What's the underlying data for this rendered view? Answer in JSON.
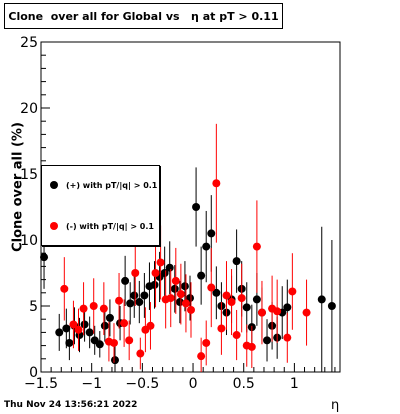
{
  "title": "Clone  over all for Global vs   η at pT > 0.11",
  "timestamp": "Thu Nov 24 13:56:21 2022",
  "chart_data": {
    "type": "scatter",
    "title": "Clone  over all for Global vs   η at pT > 0.11",
    "xlabel": "η",
    "ylabel": "Clone  over all (%)",
    "xlim": [
      -1.5,
      1.45
    ],
    "ylim": [
      0,
      25
    ],
    "xticks": [
      -1.5,
      -1,
      -0.5,
      0,
      0.5,
      1
    ],
    "xtick_labels": [
      "−1.5",
      "−1",
      "−0.5",
      "0",
      "0.5",
      "1"
    ],
    "yticks": [
      0,
      5,
      10,
      15,
      20,
      25
    ],
    "ytick_labels": [
      "0",
      "5",
      "10",
      "15",
      "20",
      "25"
    ],
    "legend_position": "left",
    "series": [
      {
        "name": "(+) with pT/|q| > 0.1",
        "color": "#000000",
        "points": [
          {
            "x": -1.47,
            "y": 8.7,
            "err": 2.4
          },
          {
            "x": -1.32,
            "y": 3.0,
            "err": 1.4
          },
          {
            "x": -1.25,
            "y": 3.3,
            "err": 1.5
          },
          {
            "x": -1.22,
            "y": 2.2,
            "err": 1.3
          },
          {
            "x": -1.17,
            "y": 3.5,
            "err": 1.4
          },
          {
            "x": -1.12,
            "y": 2.8,
            "err": 1.3
          },
          {
            "x": -1.07,
            "y": 3.6,
            "err": 1.3
          },
          {
            "x": -1.02,
            "y": 3.0,
            "err": 1.2
          },
          {
            "x": -0.97,
            "y": 2.4,
            "err": 1.1
          },
          {
            "x": -0.92,
            "y": 2.1,
            "err": 1.0
          },
          {
            "x": -0.87,
            "y": 3.5,
            "err": 1.2
          },
          {
            "x": -0.82,
            "y": 4.1,
            "err": 1.4
          },
          {
            "x": -0.77,
            "y": 0.9,
            "err": 1.2
          },
          {
            "x": -0.72,
            "y": 3.7,
            "err": 1.3
          },
          {
            "x": -0.67,
            "y": 6.9,
            "err": 1.9
          },
          {
            "x": -0.62,
            "y": 5.2,
            "err": 1.6
          },
          {
            "x": -0.58,
            "y": 5.8,
            "err": 1.7
          },
          {
            "x": -0.53,
            "y": 5.3,
            "err": 1.6
          },
          {
            "x": -0.48,
            "y": 5.8,
            "err": 1.7
          },
          {
            "x": -0.43,
            "y": 6.5,
            "err": 1.8
          },
          {
            "x": -0.38,
            "y": 6.6,
            "err": 1.8
          },
          {
            "x": -0.33,
            "y": 7.2,
            "err": 1.9
          },
          {
            "x": -0.28,
            "y": 7.5,
            "err": 2.0
          },
          {
            "x": -0.23,
            "y": 7.9,
            "err": 2.0
          },
          {
            "x": -0.18,
            "y": 6.3,
            "err": 1.8
          },
          {
            "x": -0.13,
            "y": 5.3,
            "err": 1.6
          },
          {
            "x": -0.08,
            "y": 6.5,
            "err": 1.9
          },
          {
            "x": -0.03,
            "y": 5.6,
            "err": 1.7
          },
          {
            "x": 0.03,
            "y": 12.5,
            "err": 3.0
          },
          {
            "x": 0.08,
            "y": 7.3,
            "err": 2.2
          },
          {
            "x": 0.13,
            "y": 9.5,
            "err": 2.7
          },
          {
            "x": 0.18,
            "y": 10.5,
            "err": 2.9
          },
          {
            "x": 0.23,
            "y": 6.0,
            "err": 2.0
          },
          {
            "x": 0.28,
            "y": 5.0,
            "err": 1.8
          },
          {
            "x": 0.33,
            "y": 4.5,
            "err": 1.7
          },
          {
            "x": 0.38,
            "y": 5.5,
            "err": 1.8
          },
          {
            "x": 0.43,
            "y": 8.4,
            "err": 2.4
          },
          {
            "x": 0.48,
            "y": 6.3,
            "err": 2.1
          },
          {
            "x": 0.53,
            "y": 4.9,
            "err": 1.9
          },
          {
            "x": 0.58,
            "y": 3.4,
            "err": 1.7
          },
          {
            "x": 0.63,
            "y": 5.5,
            "err": 2.0
          },
          {
            "x": 0.68,
            "y": 4.5,
            "err": 1.9
          },
          {
            "x": 0.73,
            "y": 2.4,
            "err": 1.6
          },
          {
            "x": 0.78,
            "y": 3.5,
            "err": 1.8
          },
          {
            "x": 0.83,
            "y": 2.6,
            "err": 1.6
          },
          {
            "x": 0.88,
            "y": 4.5,
            "err": 2.0
          },
          {
            "x": 0.93,
            "y": 4.9,
            "err": 2.1
          },
          {
            "x": 1.27,
            "y": 5.5,
            "err": 5.5
          },
          {
            "x": 1.37,
            "y": 5.0,
            "err": 5.0
          }
        ]
      },
      {
        "name": "(-) with pT/|q| > 0.1",
        "color": "#ff0000",
        "points": [
          {
            "x": -1.27,
            "y": 6.3,
            "err": 2.4
          },
          {
            "x": -1.18,
            "y": 3.6,
            "err": 1.8
          },
          {
            "x": -1.13,
            "y": 3.2,
            "err": 1.6
          },
          {
            "x": -1.08,
            "y": 4.8,
            "err": 2.0
          },
          {
            "x": -0.98,
            "y": 5.0,
            "err": 2.1
          },
          {
            "x": -0.88,
            "y": 4.8,
            "err": 2.0
          },
          {
            "x": -0.83,
            "y": 2.3,
            "err": 1.5
          },
          {
            "x": -0.78,
            "y": 2.2,
            "err": 1.5
          },
          {
            "x": -0.73,
            "y": 5.4,
            "err": 2.1
          },
          {
            "x": -0.68,
            "y": 3.7,
            "err": 1.8
          },
          {
            "x": -0.63,
            "y": 2.4,
            "err": 1.5
          },
          {
            "x": -0.57,
            "y": 7.5,
            "err": 2.5
          },
          {
            "x": -0.52,
            "y": 1.4,
            "err": 1.2
          },
          {
            "x": -0.47,
            "y": 3.2,
            "err": 1.7
          },
          {
            "x": -0.42,
            "y": 3.5,
            "err": 1.8
          },
          {
            "x": -0.37,
            "y": 7.5,
            "err": 2.6
          },
          {
            "x": -0.32,
            "y": 8.3,
            "err": 2.8
          },
          {
            "x": -0.27,
            "y": 5.5,
            "err": 2.2
          },
          {
            "x": -0.22,
            "y": 5.6,
            "err": 2.2
          },
          {
            "x": -0.17,
            "y": 6.9,
            "err": 2.5
          },
          {
            "x": -0.12,
            "y": 5.9,
            "err": 2.3
          },
          {
            "x": -0.07,
            "y": 5.2,
            "err": 2.2
          },
          {
            "x": -0.02,
            "y": 4.7,
            "err": 2.1
          },
          {
            "x": 0.08,
            "y": 1.2,
            "err": 1.4
          },
          {
            "x": 0.13,
            "y": 2.2,
            "err": 1.7
          },
          {
            "x": 0.18,
            "y": 6.4,
            "err": 3.0
          },
          {
            "x": 0.23,
            "y": 14.3,
            "err": 4.5
          },
          {
            "x": 0.28,
            "y": 3.3,
            "err": 2.0
          },
          {
            "x": 0.33,
            "y": 5.8,
            "err": 2.6
          },
          {
            "x": 0.38,
            "y": 5.3,
            "err": 2.5
          },
          {
            "x": 0.43,
            "y": 2.8,
            "err": 1.9
          },
          {
            "x": 0.48,
            "y": 5.6,
            "err": 2.6
          },
          {
            "x": 0.53,
            "y": 2.0,
            "err": 1.6
          },
          {
            "x": 0.58,
            "y": 1.9,
            "err": 1.6
          },
          {
            "x": 0.63,
            "y": 9.5,
            "err": 3.5
          },
          {
            "x": 0.68,
            "y": 4.5,
            "err": 2.4
          },
          {
            "x": 0.78,
            "y": 4.8,
            "err": 2.5
          },
          {
            "x": 0.83,
            "y": 4.6,
            "err": 2.4
          },
          {
            "x": 0.93,
            "y": 2.6,
            "err": 1.9
          },
          {
            "x": 0.98,
            "y": 6.1,
            "err": 2.9
          },
          {
            "x": 1.12,
            "y": 4.5,
            "err": 2.5
          }
        ]
      }
    ]
  }
}
